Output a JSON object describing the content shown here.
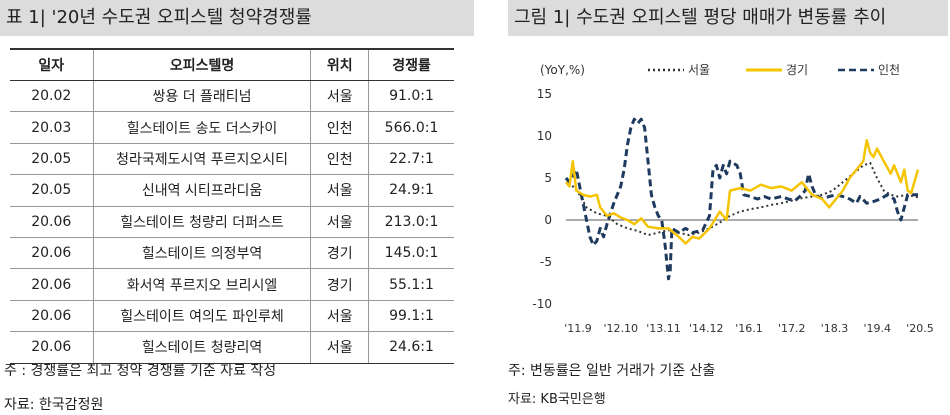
{
  "left_panel": {
    "title": "표 1| '20년 수도권 오피스텔 청약경쟁률",
    "table": {
      "headers": [
        "일자",
        "오피스텔명",
        "위치",
        "경쟁률"
      ],
      "rows": [
        [
          "20.02",
          "쌍용 더 플래티넘",
          "서울",
          "91.0:1"
        ],
        [
          "20.03",
          "힐스테이트 송도 더스카이",
          "인천",
          "566.0:1"
        ],
        [
          "20.05",
          "청라국제도시역 푸르지오시티",
          "인천",
          "22.7:1"
        ],
        [
          "20.05",
          "신내역 시티프라디움",
          "서울",
          "24.9:1"
        ],
        [
          "20.06",
          "힐스테이트 청량리 더퍼스트",
          "서울",
          "213.0:1"
        ],
        [
          "20.06",
          "힐스테이트 의정부역",
          "경기",
          "145.0:1"
        ],
        [
          "20.06",
          "화서역 푸르지오 브리시엘",
          "경기",
          "55.1:1"
        ],
        [
          "20.06",
          "힐스테이트 여의도 파인루체",
          "서울",
          "99.1:1"
        ],
        [
          "20.06",
          "힐스테이트 청량리역",
          "서울",
          "24.6:1"
        ]
      ]
    },
    "note": "주 : 경쟁률은 최고 청약 경쟁률 기준 자료 작성",
    "source": "자료: 한국감정원"
  },
  "right_panel": {
    "title": "그림 1| 수도권 오피스텔 평당 매매가 변동률 추이",
    "note": "주: 변동률은 일반 거래가 기준 산출",
    "source": "자료: KB국민은행"
  },
  "chart_data": {
    "type": "line",
    "title": "",
    "ylabel": "(YoY,%)",
    "xlabel": "",
    "ylim": [
      -10,
      15
    ],
    "yticks": [
      "15",
      "10",
      "5",
      "0",
      "-5",
      "-10"
    ],
    "xticks": [
      "'11.9",
      "'12.10",
      "'13.11",
      "'14.12",
      "'16.1",
      "'17.2",
      "'18.3",
      "'19.4",
      "'20.5"
    ],
    "grid": false,
    "legend": "top",
    "series": [
      {
        "name": "서울",
        "color": "#333333",
        "style": "dotted",
        "values": [
          [
            0,
            5
          ],
          [
            2,
            4
          ],
          [
            4,
            3
          ],
          [
            6,
            1.5
          ],
          [
            9,
            0.8
          ],
          [
            12,
            0.5
          ],
          [
            15,
            -0.5
          ],
          [
            18,
            -1
          ],
          [
            21,
            -1.3
          ],
          [
            24,
            -1.8
          ],
          [
            27,
            -1.5
          ],
          [
            30,
            -1.2
          ],
          [
            33,
            -1.5
          ],
          [
            36,
            -1.8
          ],
          [
            39,
            -1.5
          ],
          [
            42,
            -1
          ],
          [
            45,
            -0.3
          ],
          [
            48,
            0.5
          ],
          [
            51,
            1
          ],
          [
            54,
            1.3
          ],
          [
            57,
            1.5
          ],
          [
            60,
            1.8
          ],
          [
            63,
            2
          ],
          [
            66,
            2.3
          ],
          [
            69,
            2.6
          ],
          [
            72,
            2.8
          ],
          [
            75,
            3
          ],
          [
            78,
            3.5
          ],
          [
            81,
            4.5
          ],
          [
            84,
            5.5
          ],
          [
            87,
            6.5
          ],
          [
            89,
            6.8
          ],
          [
            91,
            5
          ],
          [
            93,
            3.5
          ],
          [
            95,
            3
          ],
          [
            97,
            2.8
          ],
          [
            100,
            3
          ],
          [
            103,
            2.7
          ]
        ]
      },
      {
        "name": "경기",
        "color": "#f5c400",
        "style": "solid",
        "values": [
          [
            0,
            4.5
          ],
          [
            1,
            4
          ],
          [
            2,
            7
          ],
          [
            3,
            3.5
          ],
          [
            5,
            3
          ],
          [
            7,
            2.8
          ],
          [
            9,
            3
          ],
          [
            10,
            1.5
          ],
          [
            12,
            0.5
          ],
          [
            14,
            0.8
          ],
          [
            16,
            0.3
          ],
          [
            18,
            0
          ],
          [
            20,
            -0.5
          ],
          [
            22,
            0.2
          ],
          [
            24,
            -0.8
          ],
          [
            27,
            -1
          ],
          [
            30,
            -1
          ],
          [
            33,
            -2
          ],
          [
            35,
            -2.8
          ],
          [
            37,
            -2
          ],
          [
            39,
            -2.2
          ],
          [
            42,
            -1
          ],
          [
            45,
            1
          ],
          [
            47,
            0
          ],
          [
            48,
            3.5
          ],
          [
            51,
            3.8
          ],
          [
            54,
            3.5
          ],
          [
            57,
            4.2
          ],
          [
            60,
            3.8
          ],
          [
            63,
            4
          ],
          [
            66,
            3.5
          ],
          [
            69,
            4.5
          ],
          [
            72,
            3
          ],
          [
            75,
            2.5
          ],
          [
            77,
            1.5
          ],
          [
            79,
            2.5
          ],
          [
            81,
            3.5
          ],
          [
            83,
            5
          ],
          [
            85,
            6
          ],
          [
            87,
            7
          ],
          [
            88,
            9.5
          ],
          [
            89,
            8
          ],
          [
            90,
            7.5
          ],
          [
            91,
            8.5
          ],
          [
            93,
            7
          ],
          [
            95,
            5.5
          ],
          [
            96,
            6.5
          ],
          [
            98,
            4.5
          ],
          [
            99,
            6
          ],
          [
            100,
            3.5
          ],
          [
            101,
            3.2
          ],
          [
            103,
            6
          ]
        ]
      },
      {
        "name": "인천",
        "color": "#1f3a5f",
        "style": "dashed",
        "values": [
          [
            0,
            5
          ],
          [
            1,
            4.5
          ],
          [
            3,
            6
          ],
          [
            4,
            4
          ],
          [
            5,
            2
          ],
          [
            6,
            0
          ],
          [
            7,
            -2
          ],
          [
            8,
            -3
          ],
          [
            9,
            -2.5
          ],
          [
            10,
            -1
          ],
          [
            11,
            -2
          ],
          [
            12,
            -0.5
          ],
          [
            14,
            2
          ],
          [
            16,
            4
          ],
          [
            17,
            6
          ],
          [
            18,
            9
          ],
          [
            19,
            11
          ],
          [
            20,
            12
          ],
          [
            21,
            11.5
          ],
          [
            22,
            12
          ],
          [
            23,
            11
          ],
          [
            24,
            7
          ],
          [
            25,
            3
          ],
          [
            26,
            1.5
          ],
          [
            27,
            0.5
          ],
          [
            28,
            0
          ],
          [
            29,
            -3
          ],
          [
            30,
            -7
          ],
          [
            30.5,
            -6
          ],
          [
            31,
            -1
          ],
          [
            33,
            -1.5
          ],
          [
            35,
            -1
          ],
          [
            37,
            -1.5
          ],
          [
            40,
            -1.2
          ],
          [
            42,
            0.5
          ],
          [
            43,
            6
          ],
          [
            44,
            6.5
          ],
          [
            45,
            5
          ],
          [
            46,
            6.5
          ],
          [
            47,
            5.5
          ],
          [
            48,
            7
          ],
          [
            50,
            6.5
          ],
          [
            51,
            5.5
          ],
          [
            52,
            3
          ],
          [
            54,
            2.8
          ],
          [
            56,
            2.5
          ],
          [
            58,
            2.8
          ],
          [
            60,
            2.5
          ],
          [
            63,
            2.8
          ],
          [
            65,
            2.5
          ],
          [
            67,
            2.3
          ],
          [
            69,
            3
          ],
          [
            70,
            3.5
          ],
          [
            71,
            5.5
          ],
          [
            72,
            4
          ],
          [
            73,
            3
          ],
          [
            75,
            2.5
          ],
          [
            77,
            2.8
          ],
          [
            79,
            3
          ],
          [
            81,
            2.8
          ],
          [
            83,
            2.5
          ],
          [
            85,
            2
          ],
          [
            86,
            2.8
          ],
          [
            88,
            2
          ],
          [
            90,
            2.2
          ],
          [
            92,
            2.5
          ],
          [
            94,
            3
          ],
          [
            96,
            2.5
          ],
          [
            97,
            1
          ],
          [
            98,
            0
          ],
          [
            99,
            1.5
          ],
          [
            100,
            3
          ],
          [
            103,
            3
          ]
        ]
      }
    ]
  }
}
